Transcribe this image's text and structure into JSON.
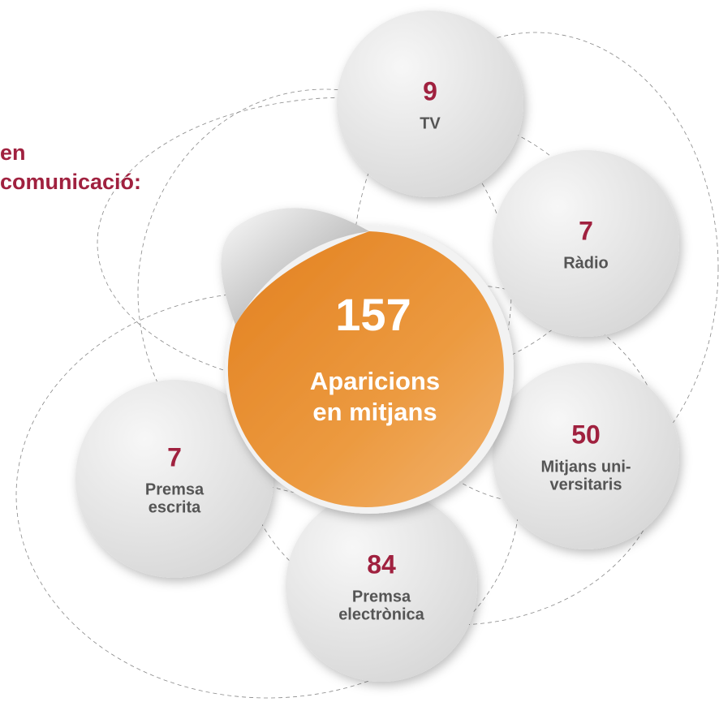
{
  "heading": {
    "lines": [
      "en",
      "comunicació:"
    ]
  },
  "center": {
    "value": "157",
    "label_lines": [
      "Aparicions",
      "en mitjans"
    ]
  },
  "nodes": [
    {
      "value": "9",
      "label_lines": [
        "TV"
      ]
    },
    {
      "value": "7",
      "label_lines": [
        "Ràdio"
      ]
    },
    {
      "value": "50",
      "label_lines": [
        "Mitjans uni-",
        "versitaris"
      ]
    },
    {
      "value": "84",
      "label_lines": [
        "Premsa",
        "electrònica"
      ]
    },
    {
      "value": "7",
      "label_lines": [
        "Premsa",
        "escrita"
      ]
    }
  ]
}
